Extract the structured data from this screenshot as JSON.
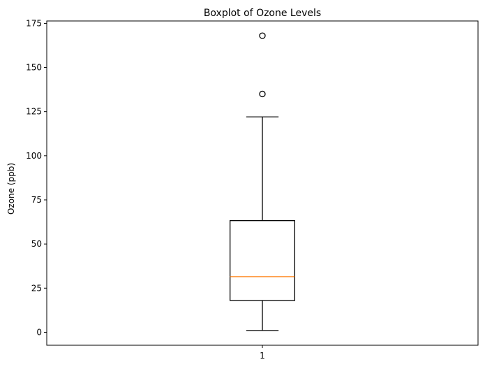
{
  "chart_data": {
    "type": "boxplot",
    "title": "Boxplot of Ozone Levels",
    "xlabel": "",
    "ylabel": "Ozone (ppb)",
    "ylim": [
      -7.35,
      176.35
    ],
    "xlim": [
      0.5,
      1.5
    ],
    "yticks": [
      0,
      25,
      50,
      75,
      100,
      125,
      150,
      175
    ],
    "xticks": [
      1
    ],
    "grid": false,
    "boxes": [
      {
        "category": "1",
        "whisker_low": 1,
        "q1": 18,
        "median": 31.5,
        "q3": 63.25,
        "whisker_high": 122,
        "outliers": [
          135,
          168
        ]
      }
    ],
    "colors": {
      "box": "#000000",
      "median": "#ff7f0e",
      "whisker": "#000000",
      "outlier": "#000000"
    }
  }
}
